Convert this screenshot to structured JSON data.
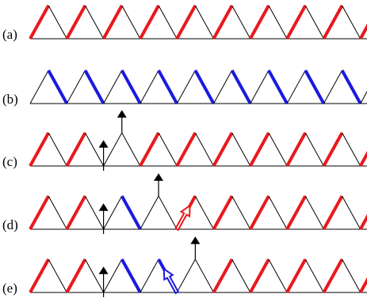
{
  "colors": {
    "red": "#e8191d",
    "blue": "#1a1ae0",
    "thin": "#000000",
    "arrow": "#000000"
  },
  "rows": [
    {
      "label": "(a)",
      "triangles": [
        "red",
        "red",
        "red",
        "red",
        "red",
        "red",
        "red",
        "red",
        "red",
        "red"
      ],
      "spins": [],
      "hollow_arrows": []
    },
    {
      "label": "(b)",
      "triangles": [
        "blue",
        "blue",
        "blue",
        "blue",
        "blue",
        "blue",
        "blue",
        "blue",
        "blue",
        "blue"
      ],
      "spins": [],
      "hollow_arrows": []
    },
    {
      "label": "(c)",
      "triangles": [
        "red",
        "red",
        "none",
        "red",
        "red",
        "red",
        "red",
        "red",
        "red",
        "red"
      ],
      "spins": [
        {
          "at_vertex": 2,
          "level": "base"
        },
        {
          "at_vertex": 2.5,
          "level": "apex"
        }
      ],
      "hollow_arrows": []
    },
    {
      "label": "(d)",
      "triangles": [
        "red",
        "red",
        "blue",
        "none",
        "red",
        "red",
        "red",
        "red",
        "red",
        "red"
      ],
      "spins": [
        {
          "at_vertex": 2,
          "level": "base"
        },
        {
          "at_vertex": 3.5,
          "level": "apex"
        }
      ],
      "hollow_arrows": [
        {
          "color": "red",
          "from_vertex": 4,
          "direction": "up-right"
        }
      ]
    },
    {
      "label": "(e)",
      "triangles": [
        "red",
        "red",
        "blue",
        "blue",
        "none",
        "red",
        "red",
        "red",
        "red",
        "red"
      ],
      "spins": [
        {
          "at_vertex": 2,
          "level": "base"
        },
        {
          "at_vertex": 4.5,
          "level": "apex"
        }
      ],
      "hollow_arrows": [
        {
          "color": "blue",
          "from_vertex": 4,
          "direction": "up-left"
        }
      ]
    }
  ]
}
